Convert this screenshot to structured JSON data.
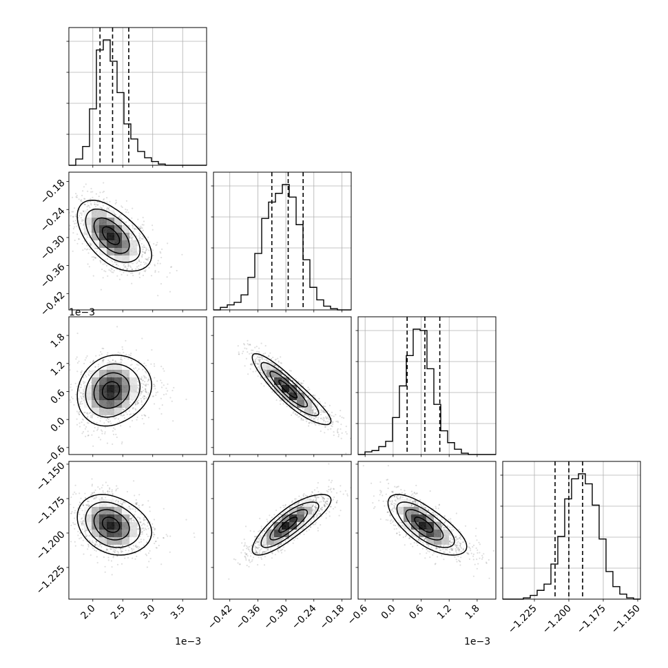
{
  "chart_data": {
    "type": "corner",
    "grid": true,
    "quantile_lines": "dashed",
    "parameters": [
      {
        "offset_text": "1e−3",
        "range": [
          1.6,
          3.9
        ],
        "ticks": [
          "2.0",
          "2.5",
          "3.0",
          "3.5"
        ],
        "tick_values": [
          2.0,
          2.5,
          3.0,
          3.5
        ],
        "quantiles": [
          2.12,
          2.33,
          2.6
        ]
      },
      {
        "offset_text": "",
        "range": [
          -0.455,
          -0.16
        ],
        "ticks": [
          "−0.42",
          "−0.36",
          "−0.30",
          "−0.24",
          "−0.18"
        ],
        "tick_values": [
          -0.42,
          -0.36,
          -0.3,
          -0.24,
          -0.18
        ],
        "quantiles": [
          -0.33,
          -0.295,
          -0.263
        ]
      },
      {
        "offset_text": "1e−3",
        "range": [
          -0.75,
          2.2
        ],
        "ticks": [
          "−0.6",
          "0.0",
          "0.6",
          "1.2",
          "1.8"
        ],
        "tick_values": [
          -0.6,
          0.0,
          0.6,
          1.2,
          1.8
        ],
        "quantiles": [
          0.3,
          0.68,
          1.0
        ]
      },
      {
        "offset_text": "",
        "range": [
          -1.248,
          -1.148
        ],
        "ticks": [
          "−1.225",
          "−1.200",
          "−1.175",
          "−1.150"
        ],
        "tick_values": [
          -1.225,
          -1.2,
          -1.175,
          -1.15
        ],
        "quantiles": [
          -1.21,
          -1.2,
          -1.19
        ]
      }
    ],
    "histograms": [
      {
        "edges_start": 1.6,
        "bin_width": 0.115,
        "counts": [
          0,
          5,
          15,
          45,
          92,
          100,
          83,
          58,
          33,
          21,
          11,
          6,
          3,
          1,
          0,
          0,
          0,
          0,
          0,
          0
        ]
      },
      {
        "edges_start": -0.455,
        "bin_width": 0.01475,
        "counts": [
          0,
          2,
          4,
          6,
          12,
          26,
          45,
          73,
          86,
          93,
          100,
          90,
          68,
          40,
          18,
          8,
          3,
          1,
          0,
          0
        ]
      },
      {
        "edges_start": -0.75,
        "bin_width": 0.1475,
        "counts": [
          0,
          2,
          3,
          6,
          10,
          28,
          52,
          75,
          95,
          94,
          65,
          38,
          18,
          9,
          4,
          1,
          0,
          0,
          0,
          0
        ]
      },
      {
        "edges_start": -1.248,
        "bin_width": 0.005,
        "counts": [
          0,
          0,
          0,
          1,
          3,
          7,
          12,
          28,
          50,
          80,
          96,
          100,
          92,
          75,
          48,
          22,
          10,
          4,
          1,
          0
        ]
      }
    ],
    "pairs": [
      {
        "row": 1,
        "col": 0,
        "mean": [
          2.3,
          -0.296
        ],
        "sd": [
          0.28,
          0.038
        ],
        "corr": -0.55
      },
      {
        "row": 2,
        "col": 0,
        "mean": [
          2.3,
          0.62
        ],
        "sd": [
          0.28,
          0.38
        ],
        "corr": 0.15
      },
      {
        "row": 2,
        "col": 1,
        "mean": [
          -0.296,
          0.65
        ],
        "sd": [
          0.038,
          0.38
        ],
        "corr": -0.9
      },
      {
        "row": 3,
        "col": 0,
        "mean": [
          2.3,
          -1.194
        ],
        "sd": [
          0.28,
          0.011
        ],
        "corr": -0.25
      },
      {
        "row": 3,
        "col": 1,
        "mean": [
          -0.296,
          -1.194
        ],
        "sd": [
          0.038,
          0.011
        ],
        "corr": 0.82
      },
      {
        "row": 3,
        "col": 2,
        "mean": [
          0.65,
          -1.194
        ],
        "sd": [
          0.38,
          0.011
        ],
        "corr": -0.72
      }
    ]
  }
}
